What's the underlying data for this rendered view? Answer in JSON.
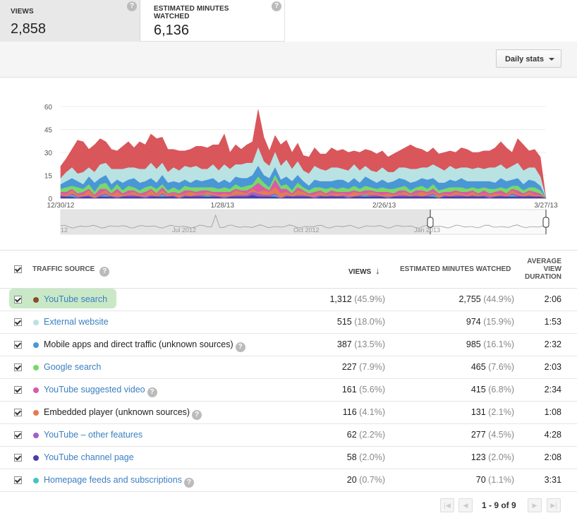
{
  "metrics": {
    "views": {
      "label": "VIEWS",
      "value": "2,858",
      "help": "?"
    },
    "minutes": {
      "label": "ESTIMATED MINUTES WATCHED",
      "value": "6,136",
      "help": "?"
    }
  },
  "toolbar": {
    "daily_stats_label": "Daily stats"
  },
  "chart_data": {
    "type": "area",
    "stacked": true,
    "y_ticks": [
      "60",
      "45",
      "30",
      "15",
      "0"
    ],
    "ylim": [
      0,
      60
    ],
    "x_tick_labels": [
      "12/30/12",
      "1/28/13",
      "2/26/13",
      "3/27/13"
    ],
    "x_start": "12/30/12",
    "x_end": "3/27/13",
    "series": [
      {
        "color": "#4c3fa8",
        "values": [
          1,
          1,
          1,
          0,
          1,
          1,
          0,
          1,
          1,
          1,
          0,
          1,
          1,
          1,
          1,
          0,
          1,
          1,
          1,
          1,
          1,
          0,
          1,
          1,
          1,
          1,
          1,
          1,
          1,
          0,
          1,
          1,
          1,
          1,
          2,
          1,
          1,
          1,
          1,
          0,
          1,
          1,
          1,
          1,
          1,
          0,
          1,
          1,
          1,
          1,
          1,
          0,
          1,
          1,
          1,
          1,
          1,
          1,
          0,
          1,
          1,
          1,
          1,
          1,
          1,
          1,
          1,
          0,
          1,
          1,
          1,
          1,
          1,
          1,
          1,
          1,
          0,
          1,
          1,
          1,
          1,
          1,
          1,
          1,
          1,
          1,
          0
        ]
      },
      {
        "color": "#45c3c7",
        "values": [
          0,
          0,
          1,
          0,
          0,
          0,
          0,
          0,
          1,
          0,
          0,
          0,
          0,
          0,
          0,
          0,
          0,
          0,
          1,
          0,
          0,
          0,
          0,
          0,
          0,
          0,
          1,
          0,
          0,
          0,
          0,
          0,
          0,
          0,
          0,
          0,
          0,
          0,
          1,
          0,
          0,
          0,
          0,
          0,
          0,
          0,
          0,
          0,
          0,
          0,
          0,
          0,
          0,
          0,
          1,
          0,
          0,
          0,
          0,
          0,
          0,
          0,
          0,
          0,
          0,
          0,
          1,
          0,
          0,
          0,
          0,
          0,
          0,
          0,
          0,
          0,
          0,
          0,
          0,
          0,
          1,
          0,
          0,
          0,
          0,
          0,
          0
        ]
      },
      {
        "color": "#a35fca",
        "values": [
          1,
          0,
          1,
          1,
          0,
          1,
          0,
          1,
          1,
          0,
          1,
          0,
          1,
          1,
          0,
          1,
          1,
          0,
          1,
          0,
          1,
          0,
          1,
          0,
          1,
          1,
          0,
          1,
          0,
          1,
          0,
          1,
          1,
          1,
          2,
          2,
          1,
          1,
          1,
          0,
          1,
          0,
          1,
          1,
          0,
          1,
          1,
          0,
          1,
          0,
          1,
          1,
          0,
          1,
          0,
          1,
          1,
          0,
          1,
          0,
          1,
          1,
          0,
          1,
          0,
          1,
          1,
          0,
          1,
          0,
          1,
          1,
          0,
          1,
          0,
          1,
          1,
          0,
          1,
          0,
          1,
          1,
          0,
          1,
          0,
          0,
          0
        ]
      },
      {
        "color": "#e27d52",
        "values": [
          1,
          1,
          2,
          1,
          1,
          3,
          1,
          1,
          2,
          1,
          3,
          1,
          1,
          2,
          1,
          1,
          3,
          1,
          2,
          1,
          1,
          2,
          1,
          3,
          1,
          1,
          2,
          1,
          1,
          2,
          1,
          3,
          2,
          1,
          2,
          1,
          3,
          2,
          4,
          3,
          2,
          1,
          3,
          2,
          1,
          1,
          2,
          1,
          1,
          2,
          1,
          1,
          3,
          1,
          1,
          2,
          1,
          1,
          2,
          1,
          1,
          2,
          1,
          1,
          3,
          1,
          1,
          2,
          1,
          1,
          2,
          1,
          1,
          2,
          1,
          1,
          1,
          2,
          1,
          1,
          2,
          1,
          1,
          2,
          1,
          1,
          0
        ]
      },
      {
        "color": "#d95aa6",
        "values": [
          1,
          2,
          1,
          1,
          2,
          1,
          1,
          3,
          1,
          1,
          2,
          1,
          2,
          1,
          1,
          2,
          1,
          1,
          2,
          1,
          1,
          1,
          2,
          1,
          1,
          2,
          1,
          1,
          2,
          1,
          2,
          1,
          1,
          2,
          1,
          6,
          2,
          1,
          5,
          3,
          2,
          1,
          2,
          1,
          1,
          2,
          1,
          1,
          2,
          1,
          1,
          2,
          1,
          1,
          2,
          1,
          1,
          2,
          1,
          1,
          2,
          1,
          1,
          2,
          1,
          1,
          2,
          1,
          1,
          2,
          1,
          1,
          2,
          1,
          1,
          2,
          1,
          1,
          2,
          1,
          1,
          2,
          1,
          1,
          2,
          1,
          0
        ]
      },
      {
        "color": "#76d96a",
        "values": [
          2,
          3,
          2,
          4,
          2,
          3,
          2,
          3,
          4,
          2,
          3,
          2,
          3,
          2,
          2,
          3,
          2,
          3,
          2,
          2,
          3,
          2,
          3,
          2,
          3,
          2,
          2,
          3,
          2,
          3,
          2,
          3,
          2,
          3,
          2,
          4,
          3,
          2,
          3,
          2,
          3,
          2,
          3,
          2,
          2,
          3,
          2,
          3,
          2,
          2,
          3,
          2,
          3,
          2,
          3,
          2,
          2,
          3,
          2,
          3,
          2,
          3,
          2,
          2,
          3,
          2,
          3,
          2,
          2,
          3,
          2,
          3,
          2,
          2,
          3,
          2,
          3,
          2,
          2,
          3,
          2,
          3,
          2,
          2,
          3,
          2,
          0
        ]
      },
      {
        "color": "#4a97d6",
        "values": [
          3,
          4,
          5,
          4,
          3,
          5,
          6,
          4,
          5,
          4,
          3,
          5,
          4,
          6,
          5,
          4,
          5,
          4,
          6,
          5,
          4,
          5,
          4,
          3,
          5,
          4,
          5,
          6,
          4,
          5,
          4,
          5,
          6,
          5,
          6,
          7,
          5,
          6,
          5,
          4,
          5,
          6,
          5,
          4,
          3,
          5,
          4,
          5,
          4,
          6,
          5,
          4,
          5,
          4,
          6,
          5,
          4,
          5,
          4,
          5,
          6,
          4,
          5,
          4,
          5,
          6,
          4,
          5,
          4,
          5,
          4,
          6,
          5,
          4,
          5,
          4,
          5,
          4,
          6,
          5,
          4,
          5,
          4,
          5,
          4,
          3,
          0
        ]
      },
      {
        "color": "#b9e2e3",
        "values": [
          4,
          6,
          7,
          5,
          8,
          6,
          7,
          9,
          8,
          10,
          7,
          9,
          8,
          7,
          9,
          8,
          10,
          9,
          8,
          7,
          9,
          8,
          9,
          10,
          9,
          8,
          7,
          9,
          8,
          10,
          9,
          8,
          9,
          10,
          8,
          12,
          9,
          8,
          10,
          9,
          11,
          8,
          9,
          7,
          8,
          9,
          8,
          7,
          9,
          8,
          7,
          8,
          9,
          8,
          7,
          6,
          7,
          8,
          7,
          6,
          7,
          8,
          9,
          8,
          7,
          8,
          9,
          10,
          8,
          9,
          8,
          7,
          9,
          8,
          9,
          8,
          9,
          10,
          9,
          8,
          9,
          10,
          9,
          8,
          9,
          6,
          0
        ]
      },
      {
        "color": "#d9565b",
        "values": [
          8,
          9,
          12,
          22,
          20,
          12,
          18,
          17,
          14,
          13,
          12,
          15,
          17,
          13,
          18,
          16,
          19,
          20,
          17,
          15,
          12,
          13,
          10,
          12,
          13,
          15,
          14,
          13,
          17,
          20,
          11,
          13,
          10,
          12,
          14,
          25,
          16,
          10,
          11,
          14,
          13,
          11,
          12,
          10,
          11,
          12,
          10,
          11,
          13,
          11,
          13,
          12,
          9,
          12,
          11,
          13,
          12,
          11,
          10,
          12,
          11,
          13,
          16,
          14,
          12,
          10,
          11,
          9,
          12,
          10,
          11,
          13,
          12,
          11,
          10,
          12,
          11,
          13,
          15,
          14,
          9,
          16,
          17,
          11,
          12,
          13,
          0
        ]
      }
    ]
  },
  "navigator": {
    "labels": [
      "12",
      "Jul 2012",
      "Oct 2012",
      "Jan 2013"
    ]
  },
  "table": {
    "headers": {
      "source": "TRAFFIC SOURCE",
      "views": "VIEWS",
      "views_sort": "↓",
      "minutes": "ESTIMATED MINUTES WATCHED",
      "avg_line1": "AVERAGE",
      "avg_line2": "VIEW",
      "avg_line3": "DURATION",
      "help": "?"
    },
    "rows": [
      {
        "source": "YouTube search",
        "link": true,
        "help": false,
        "color": "#8a4a2e",
        "views": "1,312",
        "views_pct": "(45.9%)",
        "minutes": "2,755",
        "minutes_pct": "(44.9%)",
        "avg": "2:06"
      },
      {
        "source": "External website",
        "link": true,
        "help": false,
        "color": "#b9e2e3",
        "views": "515",
        "views_pct": "(18.0%)",
        "minutes": "974",
        "minutes_pct": "(15.9%)",
        "avg": "1:53"
      },
      {
        "source": "Mobile apps and direct traffic (unknown sources)",
        "link": false,
        "help": true,
        "color": "#4a97d6",
        "views": "387",
        "views_pct": "(13.5%)",
        "minutes": "985",
        "minutes_pct": "(16.1%)",
        "avg": "2:32"
      },
      {
        "source": "Google search",
        "link": true,
        "help": false,
        "color": "#76d96a",
        "views": "227",
        "views_pct": "(7.9%)",
        "minutes": "465",
        "minutes_pct": "(7.6%)",
        "avg": "2:03"
      },
      {
        "source": "YouTube suggested video",
        "link": true,
        "help": true,
        "color": "#d95aa6",
        "views": "161",
        "views_pct": "(5.6%)",
        "minutes": "415",
        "minutes_pct": "(6.8%)",
        "avg": "2:34"
      },
      {
        "source": "Embedded player (unknown sources)",
        "link": false,
        "help": true,
        "color": "#e27d52",
        "views": "116",
        "views_pct": "(4.1%)",
        "minutes": "131",
        "minutes_pct": "(2.1%)",
        "avg": "1:08"
      },
      {
        "source": "YouTube – other features",
        "link": true,
        "help": false,
        "color": "#a35fca",
        "views": "62",
        "views_pct": "(2.2%)",
        "minutes": "277",
        "minutes_pct": "(4.5%)",
        "avg": "4:28"
      },
      {
        "source": "YouTube channel page",
        "link": true,
        "help": false,
        "color": "#4c3fa8",
        "views": "58",
        "views_pct": "(2.0%)",
        "minutes": "123",
        "minutes_pct": "(2.0%)",
        "avg": "2:08"
      },
      {
        "source": "Homepage feeds and subscriptions",
        "link": true,
        "help": true,
        "color": "#45c3c7",
        "views": "20",
        "views_pct": "(0.7%)",
        "minutes": "70",
        "minutes_pct": "(1.1%)",
        "avg": "3:31"
      }
    ]
  },
  "pagination": {
    "text": "1 - 9 of 9",
    "first": "|◀",
    "prev": "◀",
    "next": "▶",
    "last": "▶|"
  }
}
